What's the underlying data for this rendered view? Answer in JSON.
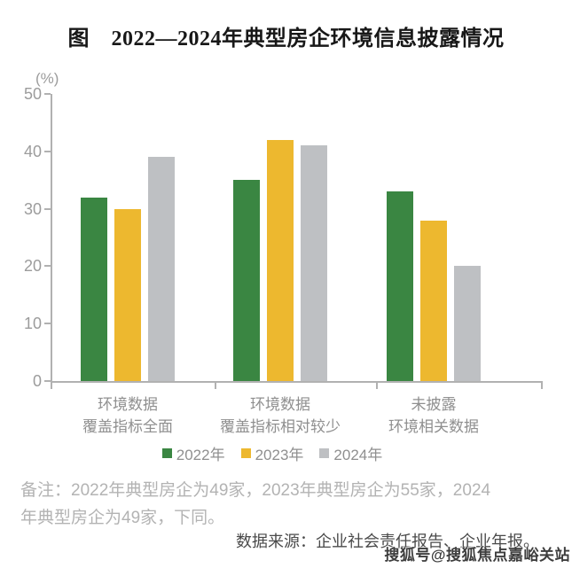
{
  "title": "图　2022—2024年典型房企环境信息披露情况",
  "chart_data": {
    "type": "bar",
    "title": "图 2022—2024年典型房企环境信息披露情况",
    "unit_label": "(%)",
    "categories": [
      [
        "环境数据",
        "覆盖指标全面"
      ],
      [
        "环境数据",
        "覆盖指标相对较少"
      ],
      [
        "未披露",
        "环境相关数据"
      ]
    ],
    "series": [
      {
        "name": "2022年",
        "color": "#3a8642",
        "values": [
          32,
          35,
          33
        ]
      },
      {
        "name": "2023年",
        "color": "#edb82f",
        "values": [
          30,
          42,
          28
        ]
      },
      {
        "name": "2024年",
        "color": "#bec0c3",
        "values": [
          39,
          41,
          20
        ]
      }
    ],
    "ylim": [
      0,
      50
    ],
    "y_ticks": [
      0,
      10,
      20,
      30,
      40,
      50
    ],
    "grid": false,
    "legend_position": "bottom"
  },
  "notes": {
    "remark_line1": "备注：2022年典型房企为49家，2023年典型房企为55家，2024",
    "remark_line2": "年典型房企为49家，下同。",
    "source": "数据来源：企业社会责任报告、企业年报。"
  },
  "watermark": "搜狐号@搜狐焦点嘉峪关站",
  "colors": {
    "axis": "#b1b1b1",
    "tick_text": "#9c9c9c",
    "category_text": "#8f8f8f",
    "remark_text": "#b3b3b3",
    "source_text": "#4a4a4a",
    "title_text": "#181818"
  }
}
